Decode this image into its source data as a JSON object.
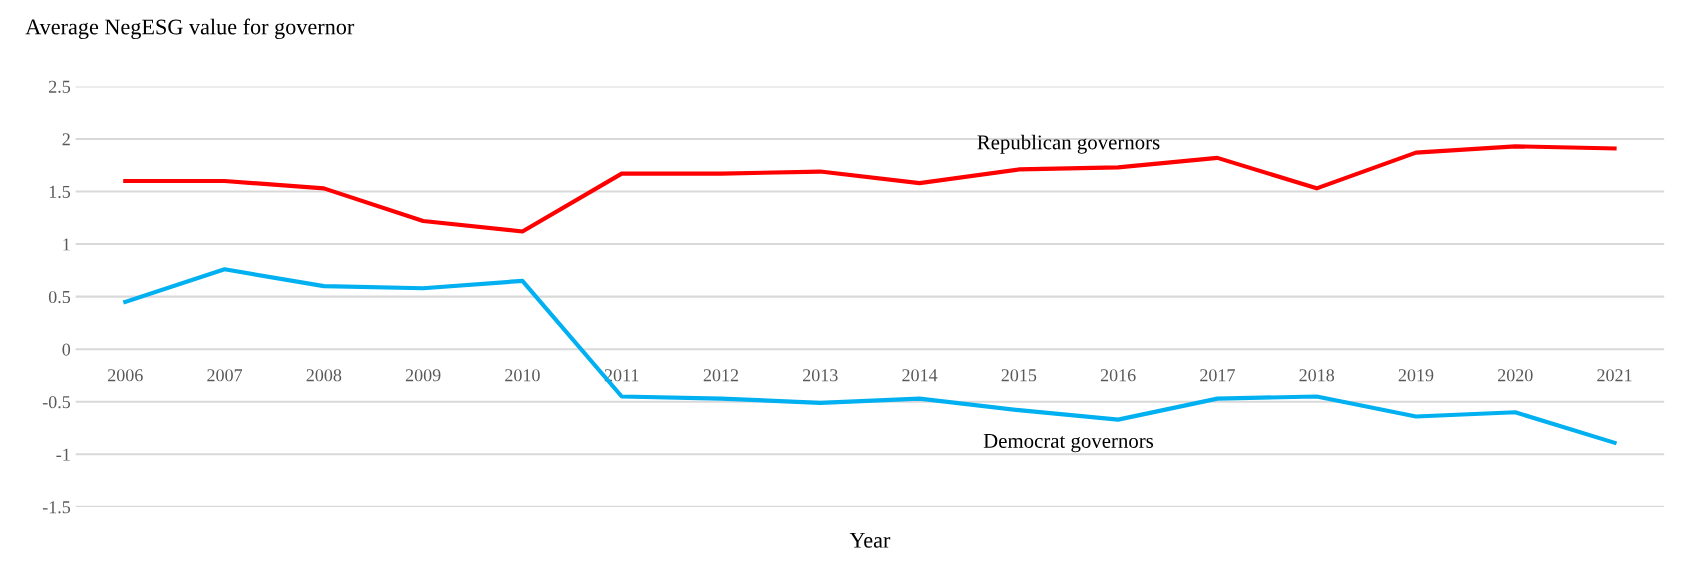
{
  "chart_data": {
    "type": "line",
    "ylabel": "Average NegESG value for governor",
    "xlabel": "Year",
    "categories": [
      "2006",
      "2007",
      "2008",
      "2009",
      "2010",
      "2011",
      "2012",
      "2013",
      "2014",
      "2015",
      "2016",
      "2017",
      "2018",
      "2019",
      "2020",
      "2021"
    ],
    "series": [
      {
        "name": "Republican governors",
        "color": "#ff0000",
        "values": [
          1.6,
          1.6,
          1.53,
          1.22,
          1.12,
          1.67,
          1.67,
          1.69,
          1.58,
          1.71,
          1.73,
          1.82,
          1.53,
          1.87,
          1.93,
          1.91
        ]
      },
      {
        "name": "Democrat governors",
        "color": "#00b0f0",
        "values": [
          0.45,
          0.76,
          0.6,
          0.58,
          0.65,
          -0.45,
          -0.47,
          -0.51,
          -0.47,
          -0.58,
          -0.67,
          -0.47,
          -0.45,
          -0.64,
          -0.6,
          -0.89
        ]
      }
    ],
    "ylim": [
      -1.5,
      2.5
    ],
    "yticks": [
      -1.5,
      -1,
      -0.5,
      0,
      0.5,
      1,
      1.5,
      2,
      2.5
    ],
    "grid": "y",
    "legend": false,
    "marker": "none",
    "line_style": "solid"
  }
}
